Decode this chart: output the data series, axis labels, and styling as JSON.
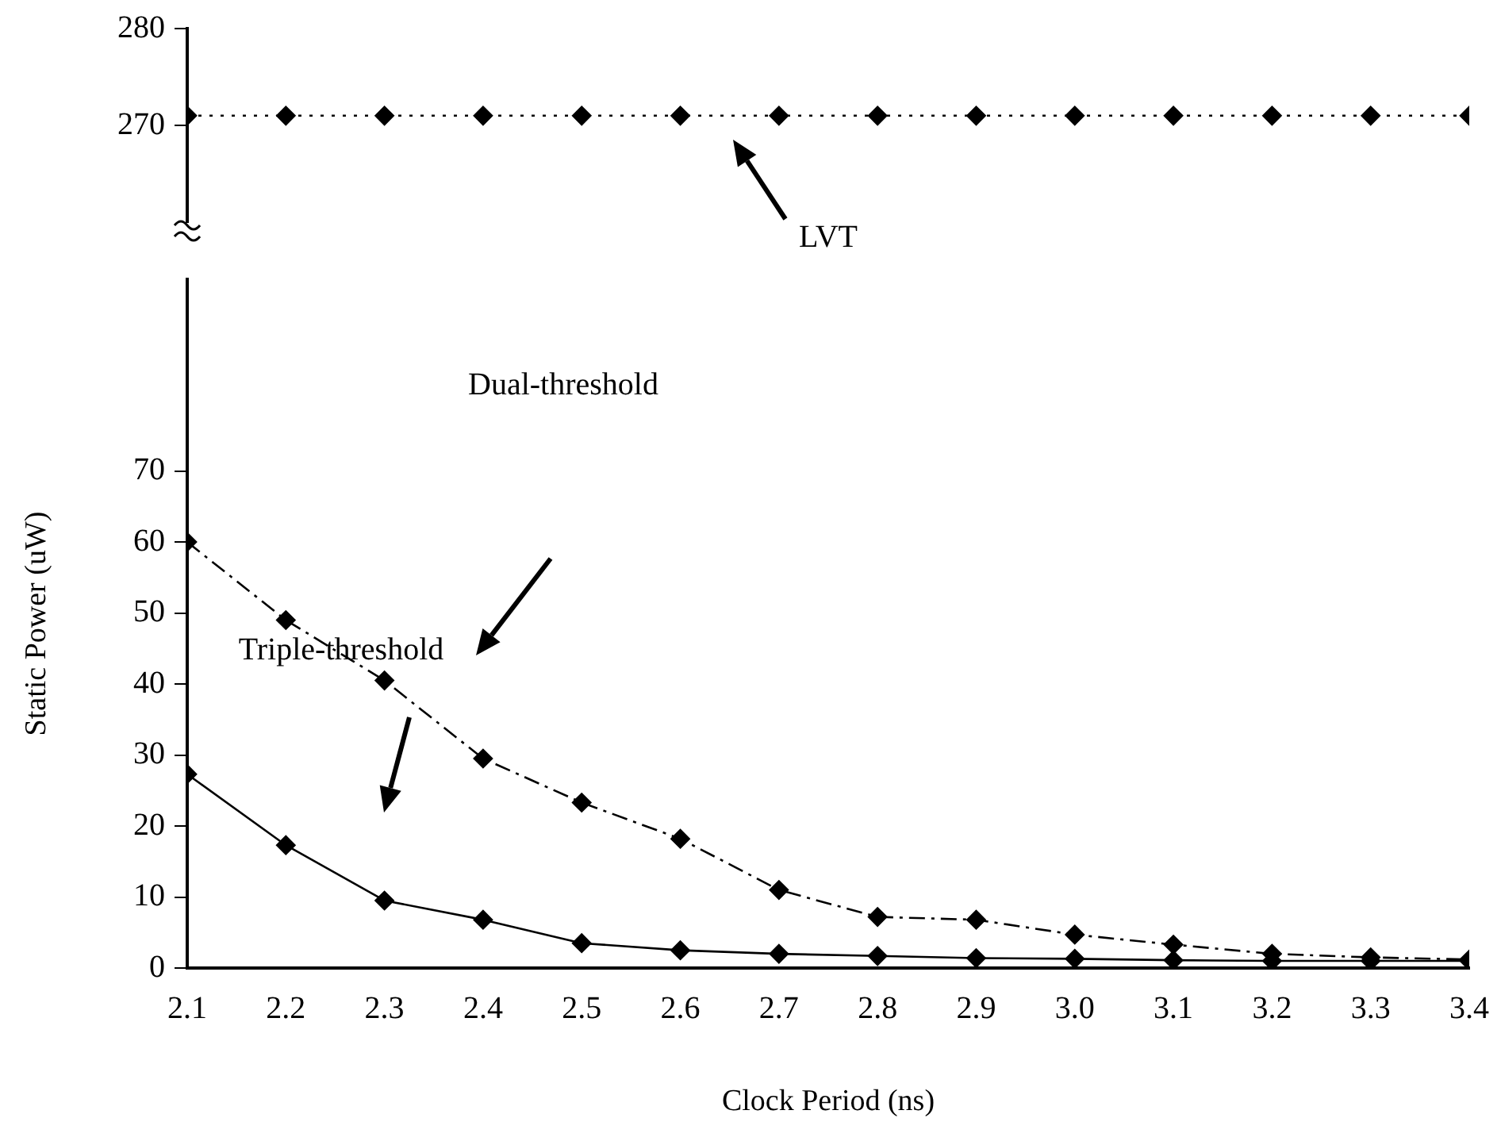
{
  "chart_data": [
    {
      "type": "line",
      "x": [
        2.1,
        2.2,
        2.3,
        2.4,
        2.5,
        2.6,
        2.7,
        2.8,
        2.9,
        3.0,
        3.1,
        3.2,
        3.3,
        3.4
      ],
      "series": [
        {
          "color": "#000000",
          "line_style": "dotted",
          "values": [
            271,
            271,
            271,
            271,
            271,
            271,
            271,
            271,
            271,
            271,
            271,
            271,
            271,
            271
          ]
        }
      ],
      "xlim": [
        2.1,
        3.4
      ],
      "ylim": [
        260,
        280
      ],
      "yticks": [
        270,
        280
      ],
      "tick_labels": "y",
      "marker": "diamond",
      "grid": false,
      "legend": false,
      "annotations": [
        "LVT"
      ]
    },
    {
      "type": "line",
      "x": [
        2.1,
        2.2,
        2.3,
        2.4,
        2.5,
        2.6,
        2.7,
        2.8,
        2.9,
        3.0,
        3.1,
        3.2,
        3.3,
        3.4
      ],
      "series": [
        {
          "color": "#000000",
          "line_style": "dashed",
          "values": [
            60,
            49,
            40.5,
            29.5,
            23.3,
            18.2,
            11,
            7.2,
            6.8,
            4.7,
            3.3,
            2,
            1.5,
            1.2
          ]
        },
        {
          "color": "#000000",
          "line_style": "solid",
          "values": [
            27.3,
            17.3,
            9.5,
            6.8,
            3.5,
            2.5,
            2,
            1.7,
            1.4,
            1.3,
            1.1,
            1,
            1,
            1
          ]
        }
      ],
      "xlim": [
        2.1,
        3.4
      ],
      "xticks": [
        2.1,
        2.2,
        2.3,
        2.4,
        2.5,
        2.6,
        2.7,
        2.8,
        2.9,
        {
          "value": 3.0,
          "label": "3.0"
        },
        3.1,
        3.2,
        3.3,
        3.4
      ],
      "ylim": [
        0,
        97
      ],
      "yticks": [
        0,
        10,
        20,
        30,
        40,
        50,
        60,
        70
      ],
      "xlabel": "Clock Period (ns)",
      "ylabel": "Static Power (uW)",
      "marker": "diamond",
      "grid": false,
      "legend": false,
      "annotations": [
        "Dual-threshold",
        "Triple-threshold"
      ]
    }
  ]
}
